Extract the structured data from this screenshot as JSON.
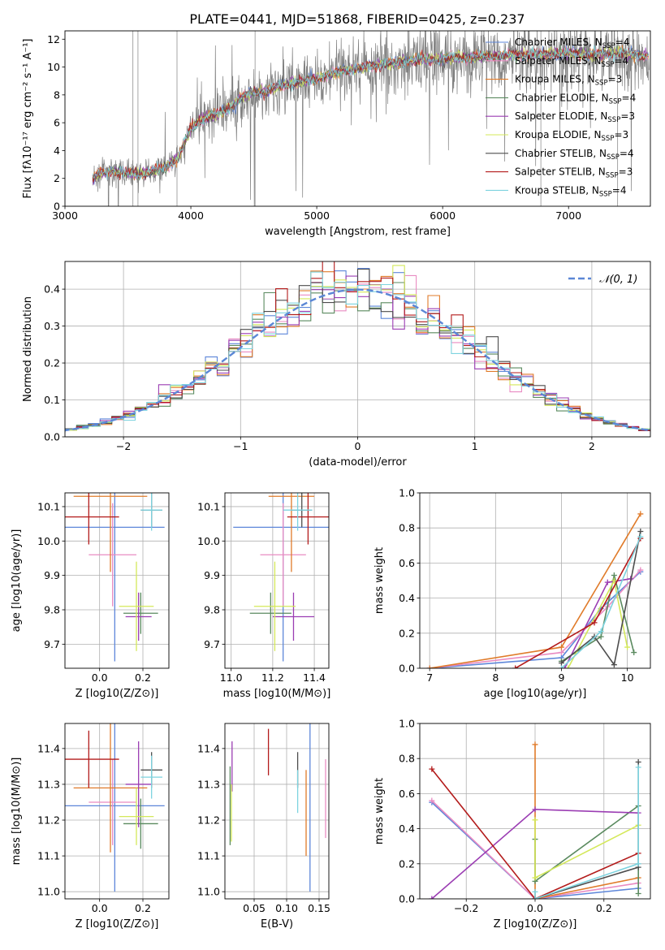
{
  "figure": {
    "title": "PLATE=0441, MJD=51868, FIBERID=0425, z=0.237"
  },
  "chart_data": [
    {
      "type": "line",
      "xlabel": "wavelength [Angstrom, rest frame]",
      "ylabel": "Flux [f$_\\lambda$10$^{-17}$ erg cm$^{-2}$ s$^{-1}$ A$^{-1}$]",
      "ylabel_display": "Flux [fλ10⁻¹⁷ erg cm⁻² s⁻¹ A⁻¹]",
      "xlim": [
        3000,
        7650
      ],
      "ylim": [
        0,
        12.6
      ],
      "xticks": [
        3000,
        4000,
        5000,
        6000,
        7000
      ],
      "yticks": [
        0,
        2,
        4,
        6,
        8,
        10,
        12
      ],
      "grid": false,
      "legend_position": "top-right",
      "data_range": [
        3220,
        7640
      ],
      "continuum": {
        "x": [
          3220,
          3300,
          3400,
          3500,
          3600,
          3700,
          3800,
          3900,
          4000,
          4100,
          4200,
          4300,
          4400,
          4500,
          4600,
          4700,
          4800,
          4900,
          5000,
          5200,
          5400,
          5600,
          5800,
          6000,
          6200,
          6400,
          6600,
          6800,
          7000,
          7200,
          7400,
          7640
        ],
        "y": [
          2.0,
          2.4,
          2.5,
          2.4,
          2.3,
          2.5,
          2.8,
          3.5,
          5.6,
          6.3,
          6.6,
          7.0,
          7.8,
          8.2,
          8.2,
          8.6,
          8.8,
          9.0,
          9.2,
          9.7,
          10.0,
          10.3,
          10.5,
          10.6,
          10.7,
          10.8,
          10.9,
          10.9,
          11.0,
          10.9,
          11.0,
          10.8
        ]
      },
      "series": [
        {
          "name": "Chabrier MILES, N$_{SSP}$=4",
          "label": "Chabrier MILES, N",
          "sub": "SSP",
          "suffix": "=4",
          "color": "#5d86d9"
        },
        {
          "name": "Salpeter MILES, N$_{SSP}$=4",
          "label": "Salpeter MILES, N",
          "sub": "SSP",
          "suffix": "=4",
          "color": "#e98bc2"
        },
        {
          "name": "Kroupa MILES, N$_{SSP}$=3",
          "label": "Kroupa MILES, N",
          "sub": "SSP",
          "suffix": "=3",
          "color": "#e07b2a"
        },
        {
          "name": "Chabrier ELODIE, N$_{SSP}$=4",
          "label": "Chabrier ELODIE, N",
          "sub": "SSP",
          "suffix": "=4",
          "color": "#5a8a5f"
        },
        {
          "name": "Salpeter ELODIE, N$_{SSP}$=3",
          "label": "Salpeter ELODIE, N",
          "sub": "SSP",
          "suffix": "=3",
          "color": "#9b3db3"
        },
        {
          "name": "Kroupa ELODIE, N$_{SSP}$=3",
          "label": "Kroupa ELODIE, N",
          "sub": "SSP",
          "suffix": "=3",
          "color": "#d4e85a"
        },
        {
          "name": "Chabrier STELIB, N$_{SSP}$=4",
          "label": "Chabrier STELIB, N",
          "sub": "SSP",
          "suffix": "=4",
          "color": "#4d4d4d"
        },
        {
          "name": "Salpeter STELIB, N$_{SSP}$=3",
          "label": "Salpeter STELIB, N",
          "sub": "SSP",
          "suffix": "=3",
          "color": "#b31b1b"
        },
        {
          "name": "Kroupa STELIB, N$_{SSP}$=4",
          "label": "Kroupa STELIB, N",
          "sub": "SSP",
          "suffix": "=4",
          "color": "#7dd3df"
        }
      ],
      "data_color": "#808080"
    },
    {
      "type": "histogram",
      "xlabel": "(data-model)/error",
      "ylabel": "Normed distribution",
      "xlim": [
        -2.5,
        2.5
      ],
      "ylim": [
        0,
        0.475
      ],
      "xticks": [
        -2,
        -1,
        0,
        1,
        2
      ],
      "xtick_labels": [
        "−2",
        "−1",
        "0",
        "1",
        "2"
      ],
      "yticks": [
        0.0,
        0.1,
        0.2,
        0.3,
        0.4
      ],
      "ytick_labels": [
        "0.0",
        "0.1",
        "0.2",
        "0.3",
        "0.4"
      ],
      "grid": true,
      "legend_position": "top-right",
      "bin_width": 0.1,
      "bin_start": -2.6,
      "reference_curve": {
        "name": "$\\mathcal{N}(0,1)$",
        "label": "𝒩(0, 1)",
        "color": "#5b87d6",
        "style": "dashed"
      },
      "colors": [
        "#5d86d9",
        "#e98bc2",
        "#e07b2a",
        "#5a8a5f",
        "#9b3db3",
        "#d4e85a",
        "#4d4d4d",
        "#b31b1b",
        "#7dd3df"
      ]
    },
    {
      "type": "scatter",
      "xlabel": "Z [log$_{10}$($Z/Z_\\odot$)]",
      "xlabel_display": "Z [log10(Z/Z⊙)]",
      "ylabel": "age  [log$_{10}$($age/yr$)]",
      "ylabel_display": "age  [log10(age/yr)]",
      "xlim": [
        -0.16,
        0.32
      ],
      "ylim": [
        9.63,
        10.14
      ],
      "xticks": [
        0.0,
        0.2
      ],
      "xtick_labels": [
        "0.0",
        "0.2"
      ],
      "yticks": [
        9.7,
        9.8,
        9.9,
        10.0,
        10.1
      ],
      "ytick_labels": [
        "9.7",
        "9.8",
        "9.9",
        "10.0",
        "10.1"
      ],
      "grid": true,
      "points": [
        {
          "x": 0.07,
          "xerr": 0.23,
          "y": 10.04,
          "yerr": 0.39,
          "color": "#5d86d9"
        },
        {
          "x": 0.06,
          "xerr": 0.11,
          "y": 9.96,
          "yerr": 0.15,
          "color": "#e98bc2"
        },
        {
          "x": 0.05,
          "xerr": 0.17,
          "y": 10.13,
          "yerr": 0.22,
          "color": "#e07b2a"
        },
        {
          "x": 0.19,
          "xerr": 0.08,
          "y": 9.79,
          "yerr": 0.06,
          "color": "#5a8a5f"
        },
        {
          "x": 0.18,
          "xerr": 0.06,
          "y": 9.78,
          "yerr": 0.07,
          "color": "#9b3db3"
        },
        {
          "x": 0.17,
          "xerr": 0.08,
          "y": 9.81,
          "yerr": 0.13,
          "color": "#d4e85a"
        },
        {
          "x": 0.24,
          "xerr": 0.05,
          "y": 10.09,
          "yerr": 0.05,
          "color": "#4d4d4d"
        },
        {
          "x": -0.05,
          "xerr": 0.14,
          "y": 10.07,
          "yerr": 0.08,
          "color": "#b31b1b"
        },
        {
          "x": 0.24,
          "xerr": 0.05,
          "y": 10.09,
          "yerr": 0.06,
          "color": "#7dd3df"
        }
      ]
    },
    {
      "type": "scatter",
      "xlabel": "mass [log$_{10}$($M/M_\\odot$)]",
      "xlabel_display": "mass [log10(M/M⊙)]",
      "ylabel": "",
      "xlim": [
        10.97,
        11.47
      ],
      "ylim": [
        9.63,
        10.14
      ],
      "xticks": [
        11.0,
        11.2,
        11.4
      ],
      "xtick_labels": [
        "11.0",
        "11.2",
        "11.4"
      ],
      "yticks": [
        9.7,
        9.8,
        9.9,
        10.0,
        10.1
      ],
      "ytick_labels": [
        "9.7",
        "9.8",
        "9.9",
        "10.0",
        "10.1"
      ],
      "grid": true,
      "points": [
        {
          "x": 11.25,
          "xerr": 0.24,
          "y": 10.04,
          "yerr": 0.39,
          "color": "#5d86d9"
        },
        {
          "x": 11.25,
          "xerr": 0.11,
          "y": 9.96,
          "yerr": 0.15,
          "color": "#e98bc2"
        },
        {
          "x": 11.29,
          "xerr": 0.11,
          "y": 10.13,
          "yerr": 0.22,
          "color": "#e07b2a"
        },
        {
          "x": 11.19,
          "xerr": 0.1,
          "y": 9.79,
          "yerr": 0.06,
          "color": "#5a8a5f"
        },
        {
          "x": 11.3,
          "xerr": 0.1,
          "y": 9.78,
          "yerr": 0.07,
          "color": "#9b3db3"
        },
        {
          "x": 11.21,
          "xerr": 0.1,
          "y": 9.81,
          "yerr": 0.13,
          "color": "#d4e85a"
        },
        {
          "x": 11.34,
          "xerr": 0.05,
          "y": 10.09,
          "yerr": 0.05,
          "color": "#4d4d4d"
        },
        {
          "x": 11.37,
          "xerr": 0.1,
          "y": 10.07,
          "yerr": 0.08,
          "color": "#b31b1b"
        },
        {
          "x": 11.32,
          "xerr": 0.07,
          "y": 10.09,
          "yerr": 0.06,
          "color": "#7dd3df"
        }
      ]
    },
    {
      "type": "line",
      "xlabel": "age  [log$_{10}$($age/yr$)]",
      "xlabel_display": "age  [log10(age/yr)]",
      "ylabel": "mass weight",
      "xlim": [
        6.85,
        10.35
      ],
      "ylim": [
        0,
        1
      ],
      "xticks": [
        7,
        8,
        9,
        10
      ],
      "yticks": [
        0.0,
        0.2,
        0.4,
        0.6,
        0.8,
        1.0
      ],
      "ytick_labels": [
        "0.0",
        "0.2",
        "0.4",
        "0.6",
        "0.8",
        "1.0"
      ],
      "grid": true,
      "series": [
        {
          "color": "#5d86d9",
          "x": [
            7.0,
            9.0,
            9.6,
            10.2
          ],
          "y": [
            0.0,
            0.06,
            0.34,
            0.55
          ]
        },
        {
          "color": "#e98bc2",
          "x": [
            7.0,
            9.0,
            9.7,
            10.2
          ],
          "y": [
            0.0,
            0.09,
            0.35,
            0.56
          ]
        },
        {
          "color": "#e07b2a",
          "x": [
            7.0,
            9.0,
            10.2
          ],
          "y": [
            0.0,
            0.12,
            0.88
          ]
        },
        {
          "color": "#5a8a5f",
          "x": [
            9.0,
            9.6,
            9.8,
            10.1
          ],
          "y": [
            0.04,
            0.18,
            0.53,
            0.09
          ]
        },
        {
          "color": "#9b3db3",
          "x": [
            9.05,
            9.7,
            10.05
          ],
          "y": [
            0.0,
            0.49,
            0.51
          ]
        },
        {
          "color": "#d4e85a",
          "x": [
            9.1,
            9.8,
            10.0
          ],
          "y": [
            0.0,
            0.5,
            0.12
          ]
        },
        {
          "color": "#4d4d4d",
          "x": [
            9.0,
            9.5,
            9.8,
            10.2
          ],
          "y": [
            0.03,
            0.18,
            0.02,
            0.78
          ]
        },
        {
          "color": "#b31b1b",
          "x": [
            8.3,
            9.5,
            10.2
          ],
          "y": [
            0.0,
            0.26,
            0.74
          ]
        },
        {
          "color": "#7dd3df",
          "x": [
            9.0,
            9.6,
            10.2
          ],
          "y": [
            0.0,
            0.21,
            0.75
          ]
        }
      ]
    },
    {
      "type": "scatter",
      "xlabel": "Z [log$_{10}$($Z/Z_\\odot$)]",
      "xlabel_display": "Z [log10(Z/Z⊙)]",
      "ylabel": "mass [log$_{10}$($M/M_\\odot$)]",
      "ylabel_display": "mass [log10(M/M⊙)]",
      "xlim": [
        -0.16,
        0.32
      ],
      "ylim": [
        10.98,
        11.47
      ],
      "xticks": [
        0.0,
        0.2
      ],
      "xtick_labels": [
        "0.0",
        "0.2"
      ],
      "yticks": [
        11.0,
        11.1,
        11.2,
        11.3,
        11.4
      ],
      "ytick_labels": [
        "11.0",
        "11.1",
        "11.2",
        "11.3",
        "11.4"
      ],
      "grid": true,
      "points": [
        {
          "x": 0.07,
          "xerr": 0.23,
          "y": 11.24,
          "yerr": 0.24,
          "color": "#5d86d9"
        },
        {
          "x": 0.06,
          "xerr": 0.11,
          "y": 11.25,
          "yerr": 0.12,
          "color": "#e98bc2"
        },
        {
          "x": 0.05,
          "xerr": 0.17,
          "y": 11.29,
          "yerr": 0.18,
          "color": "#e07b2a"
        },
        {
          "x": 0.19,
          "xerr": 0.08,
          "y": 11.19,
          "yerr": 0.07,
          "color": "#5a8a5f"
        },
        {
          "x": 0.18,
          "xerr": 0.06,
          "y": 11.3,
          "yerr": 0.12,
          "color": "#9b3db3"
        },
        {
          "x": 0.17,
          "xerr": 0.08,
          "y": 11.21,
          "yerr": 0.08,
          "color": "#d4e85a"
        },
        {
          "x": 0.24,
          "xerr": 0.05,
          "y": 11.34,
          "yerr": 0.05,
          "color": "#4d4d4d"
        },
        {
          "x": -0.05,
          "xerr": 0.14,
          "y": 11.37,
          "yerr": 0.08,
          "color": "#b31b1b"
        },
        {
          "x": 0.24,
          "xerr": 0.05,
          "y": 11.32,
          "yerr": 0.06,
          "color": "#7dd3df"
        }
      ]
    },
    {
      "type": "scatter",
      "xlabel": "E(B-V)",
      "ylabel": "",
      "xlim": [
        0.005,
        0.165
      ],
      "ylim": [
        10.98,
        11.47
      ],
      "xticks": [
        0.05,
        0.1,
        0.15
      ],
      "xtick_labels": [
        "0.05",
        "0.10",
        "0.15"
      ],
      "yticks": [
        11.0,
        11.1,
        11.2,
        11.3,
        11.4
      ],
      "ytick_labels": [
        "11.0",
        "11.1",
        "11.2",
        "11.3",
        "11.4"
      ],
      "grid": true,
      "points": [
        {
          "x": 0.136,
          "y": 11.24,
          "yerr": 0.24,
          "color": "#5d86d9"
        },
        {
          "x": 0.16,
          "y": 11.26,
          "yerr": 0.11,
          "color": "#e98bc2"
        },
        {
          "x": 0.13,
          "y": 11.22,
          "yerr": 0.12,
          "color": "#e07b2a"
        },
        {
          "x": 0.013,
          "y": 11.24,
          "yerr": 0.11,
          "color": "#5a8a5f"
        },
        {
          "x": 0.016,
          "y": 11.35,
          "yerr": 0.07,
          "color": "#9b3db3"
        },
        {
          "x": 0.015,
          "y": 11.22,
          "yerr": 0.08,
          "color": "#d4e85a"
        },
        {
          "x": 0.117,
          "y": 11.34,
          "yerr": 0.05,
          "color": "#4d4d4d"
        },
        {
          "x": 0.072,
          "y": 11.39,
          "yerr": 0.065,
          "color": "#b31b1b"
        },
        {
          "x": 0.117,
          "y": 11.28,
          "yerr": 0.06,
          "color": "#7dd3df"
        }
      ]
    },
    {
      "type": "line",
      "xlabel": "Z [log$_{10}$($Z/Z_\\odot$)]",
      "xlabel_display": "Z [log10(Z/Z⊙)]",
      "ylabel": "mass weight",
      "xlim": [
        -0.335,
        0.335
      ],
      "ylim": [
        0,
        1
      ],
      "xticks": [
        -0.2,
        0.0,
        0.2
      ],
      "xtick_labels": [
        "−0.2",
        "0.0",
        "0.2"
      ],
      "yticks": [
        0.0,
        0.2,
        0.4,
        0.6,
        0.8,
        1.0
      ],
      "ytick_labels": [
        "0.0",
        "0.2",
        "0.4",
        "0.6",
        "0.8",
        "1.0"
      ],
      "grid": true,
      "series": [
        {
          "color": "#5d86d9",
          "x": [
            -0.3,
            0.0,
            0.3
          ],
          "y": [
            0.55,
            0.0,
            0.06
          ]
        },
        {
          "color": "#e98bc2",
          "x": [
            -0.3,
            0.0,
            0.3
          ],
          "y": [
            0.56,
            0.0,
            0.09
          ]
        },
        {
          "color": "#e07b2a",
          "x": [
            0.0,
            0.0,
            0.3
          ],
          "y": [
            0.88,
            0.0,
            0.12
          ]
        },
        {
          "color": "#5a8a5f",
          "x": [
            0.0,
            0.0,
            0.3,
            0.3
          ],
          "y": [
            0.34,
            0.1,
            0.53,
            0.03
          ]
        },
        {
          "color": "#9b3db3",
          "x": [
            -0.3,
            0.0,
            0.3
          ],
          "y": [
            0.0,
            0.51,
            0.49
          ]
        },
        {
          "color": "#d4e85a",
          "x": [
            0.0,
            0.0,
            0.3
          ],
          "y": [
            0.45,
            0.12,
            0.42
          ]
        },
        {
          "color": "#4d4d4d",
          "x": [
            0.0,
            0.3,
            0.3
          ],
          "y": [
            0.0,
            0.18,
            0.78
          ]
        },
        {
          "color": "#b31b1b",
          "x": [
            -0.3,
            0.0,
            0.3
          ],
          "y": [
            0.74,
            0.0,
            0.26
          ]
        },
        {
          "color": "#7dd3df",
          "x": [
            0.0,
            0.0,
            0.3,
            0.3
          ],
          "y": [
            0.04,
            0.0,
            0.2,
            0.75
          ]
        }
      ]
    }
  ]
}
